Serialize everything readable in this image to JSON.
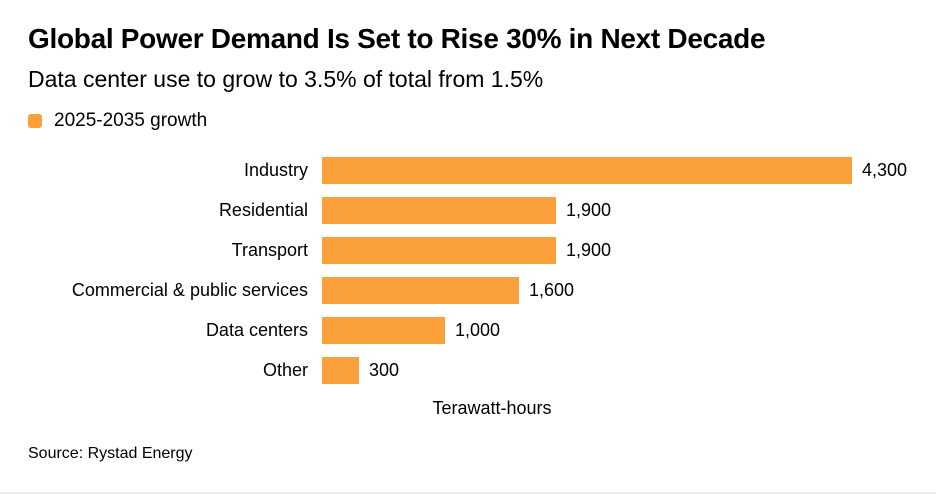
{
  "header": {
    "title": "Global Power Demand Is Set to Rise 30% in Next Decade",
    "subtitle": "Data center use to grow to 3.5% of total from 1.5%"
  },
  "legend": {
    "label": "2025-2035 growth",
    "swatch_color": "#FAA13B"
  },
  "chart_data": {
    "type": "bar",
    "orientation": "horizontal",
    "title": "Global Power Demand Is Set to Rise 30% in Next Decade",
    "subtitle": "Data center use to grow to 3.5% of total from 1.5%",
    "series_name": "2025-2035 growth",
    "categories": [
      "Industry",
      "Residential",
      "Transport",
      "Commercial & public services",
      "Data centers",
      "Other"
    ],
    "values": [
      4300,
      1900,
      1900,
      1600,
      1000,
      300
    ],
    "value_labels": [
      "4,300",
      "1,900",
      "1,900",
      "1,600",
      "1,000",
      "300"
    ],
    "xlabel": "Terawatt-hours",
    "ylabel": "",
    "xlim": [
      0,
      4300
    ],
    "bar_color": "#FAA13B",
    "grid": false,
    "legend_position": "top-left",
    "value_labels_shown": true
  },
  "footer": {
    "source": "Source: Rystad Energy"
  }
}
